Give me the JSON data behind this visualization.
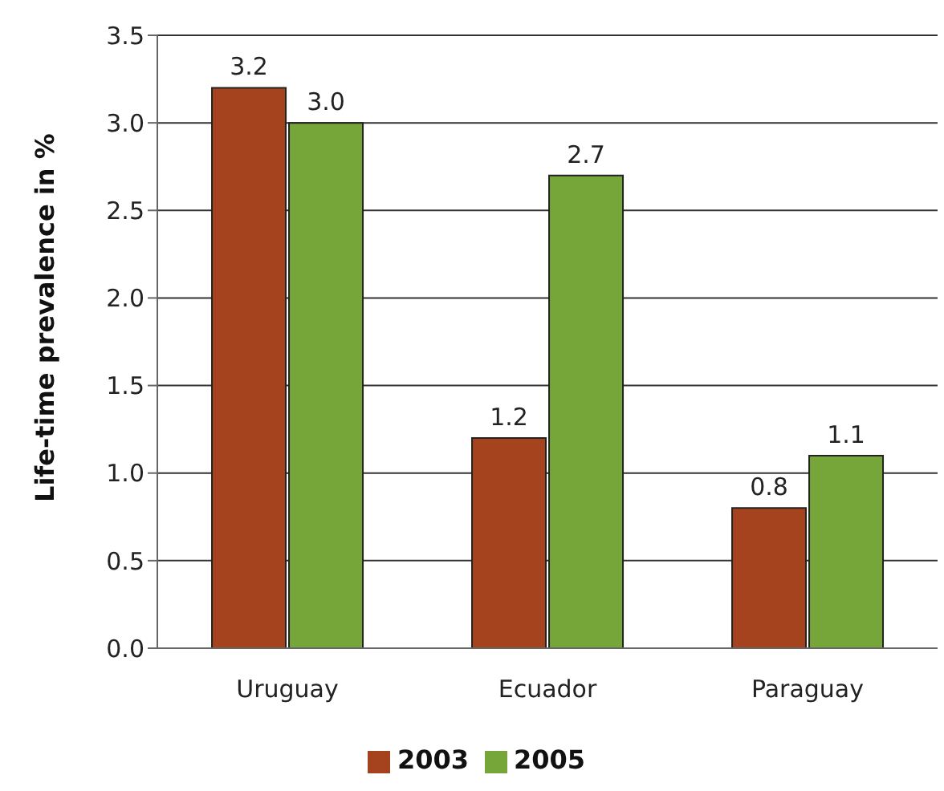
{
  "chart_data": {
    "type": "bar",
    "ylabel": "Life-time prevalence in %",
    "categories": [
      "Uruguay",
      "Ecuador",
      "Paraguay"
    ],
    "series": [
      {
        "name": "2003",
        "color": "#a5431e",
        "values": [
          3.2,
          1.2,
          0.8
        ],
        "value_labels": [
          "3.2",
          "1.2",
          "0.8"
        ]
      },
      {
        "name": "2005",
        "color": "#76a53a",
        "values": [
          3.0,
          2.7,
          1.1
        ],
        "value_labels": [
          "3.0",
          "2.7",
          "1.1"
        ]
      }
    ],
    "ylim": [
      0,
      3.5
    ],
    "yticks": [
      {
        "value": 0,
        "label": "0.0"
      },
      {
        "value": 0.5,
        "label": "0.5"
      },
      {
        "value": 1,
        "label": "1.0"
      },
      {
        "value": 1.5,
        "label": "1.5"
      },
      {
        "value": 2,
        "label": "2.0"
      },
      {
        "value": 2.5,
        "label": "2.5"
      },
      {
        "value": 3,
        "label": "3.0"
      },
      {
        "value": 3.5,
        "label": "3.5"
      }
    ],
    "grid": "y",
    "legend": "bottom"
  }
}
